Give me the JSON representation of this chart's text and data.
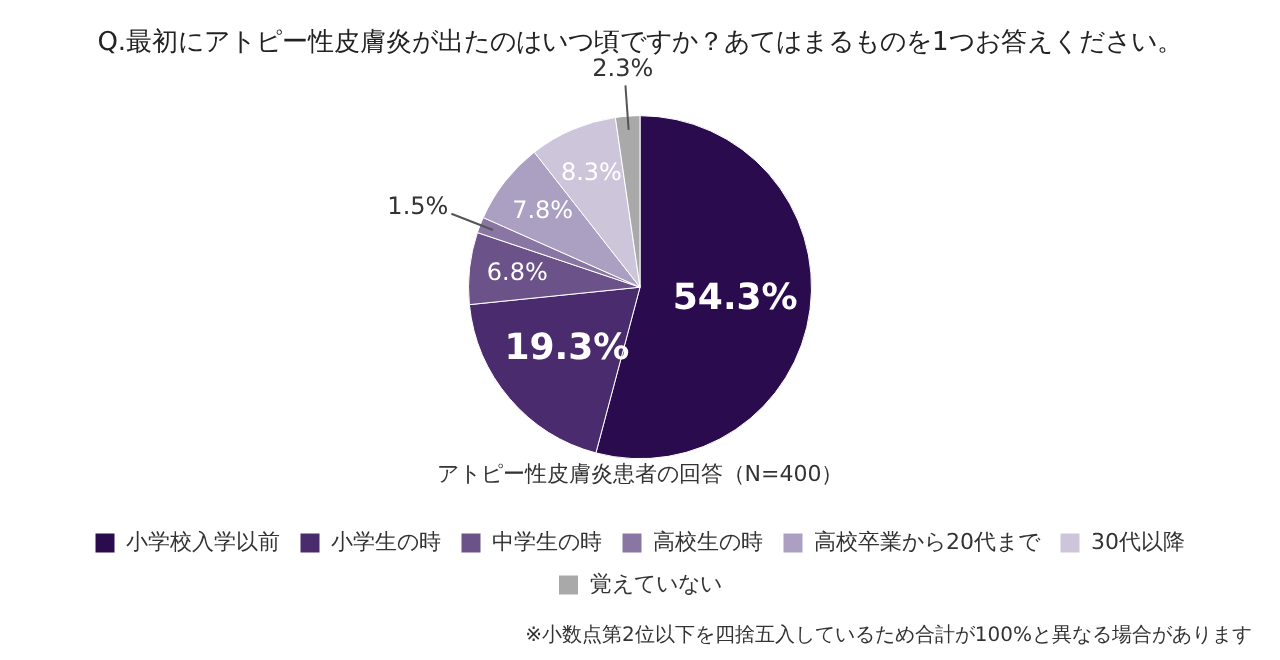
{
  "chart_data": {
    "type": "pie",
    "title": "Q.最初にアトピー性皮膚炎が出たのはいつ頃ですか？あてはまるものを1つお答えください。",
    "categories": [
      "小学校入学以前",
      "小学生の時",
      "中学生の時",
      "高校生の時",
      "高校卒業から20代まで",
      "30代以降",
      "覚えていない"
    ],
    "values": [
      54.3,
      19.3,
      6.8,
      1.5,
      7.8,
      8.3,
      2.3
    ],
    "colors": [
      "#2a0c4e",
      "#4a2c6e",
      "#6b5288",
      "#8a76a3",
      "#ab9fc2",
      "#cdc6da",
      "#a9a9a9"
    ],
    "value_labels": [
      "54.3%",
      "19.3%",
      "6.8%",
      "1.5%",
      "7.8%",
      "8.3%",
      "2.3%"
    ],
    "legend": "bottom",
    "annotations": [
      "アトピー性皮膚炎患者の回答（N=400）",
      "※小数点第2位以下を四捨五入しているため合計が100%と異なる場合があります"
    ]
  }
}
